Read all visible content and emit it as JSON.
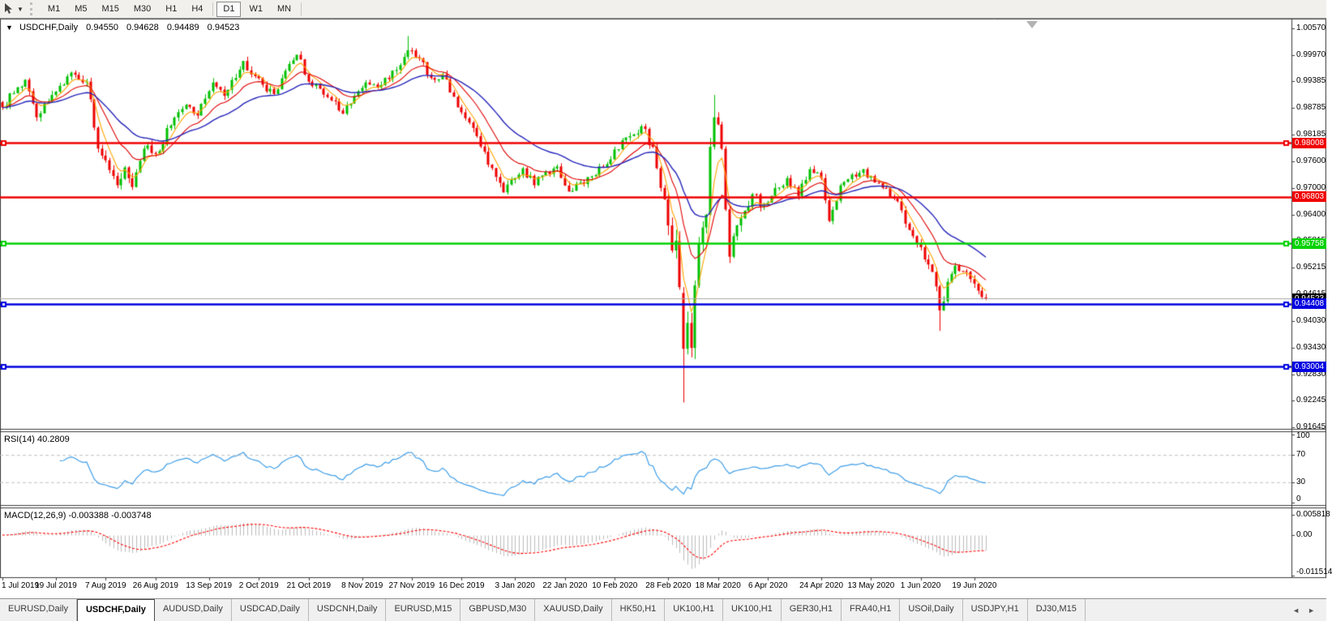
{
  "toolbar": {
    "dropdown_glyph": "▼",
    "timeframes": [
      "M1",
      "M5",
      "M15",
      "M30",
      "H1",
      "H4",
      "D1",
      "W1",
      "MN"
    ],
    "active_timeframe": "D1"
  },
  "chart_header": {
    "collapse_icon": "▼",
    "symbol": "USDCHF,Daily",
    "open": "0.94550",
    "high": "0.94628",
    "low": "0.94489",
    "close": "0.94523"
  },
  "chart_data": {
    "type": "candlestick",
    "symbol": "USDCHF",
    "timeframe": "Daily",
    "colors": {
      "bull": "#00c000",
      "bear": "#ee0000",
      "ma_fast": "#ffa500",
      "ma_mid": "#e00000",
      "ma_slow": "#2626bb",
      "rsi_line": "#3e9ee8",
      "macd_hist": "#bbbbbb",
      "macd_signal": "#ff0000",
      "current_price_line": "#a8a8a8",
      "current_price_badge": "#000000"
    },
    "price_axis": {
      "ticks": [
        "1.00570",
        "0.99970",
        "0.99385",
        "0.98785",
        "0.98185",
        "0.97600",
        "0.97000",
        "0.96400",
        "0.95815",
        "0.95215",
        "0.94615",
        "0.94030",
        "0.93430",
        "0.92830",
        "0.92245",
        "0.91645"
      ]
    },
    "current_price": 0.94523,
    "current_price_label": "0.94523",
    "levels": [
      {
        "price": 0.98008,
        "label": "0.98008",
        "color": "#f00000",
        "selected": true
      },
      {
        "price": 0.96803,
        "label": "0.96803",
        "color": "#f00000",
        "selected": false
      },
      {
        "price": 0.95758,
        "label": "0.95758",
        "color": "#00d200",
        "selected": true
      },
      {
        "price": 0.94408,
        "label": "0.94408",
        "color": "#0000e0",
        "selected": true
      },
      {
        "price": 0.93004,
        "label": "0.93004",
        "color": "#0000e0",
        "selected": true
      }
    ],
    "moving_averages": [
      {
        "period": 5,
        "color": "#ffa500",
        "width": 1.1
      },
      {
        "period": 13,
        "color": "#e00000",
        "width": 1.1
      },
      {
        "period": 30,
        "color": "#2626bb",
        "width": 1.4
      }
    ],
    "close_anchors": [
      [
        0,
        0.988,
        0.002
      ],
      [
        3,
        0.9912,
        0.002
      ],
      [
        6,
        0.9942,
        0.002
      ],
      [
        9,
        0.9858,
        0.0022
      ],
      [
        13,
        0.9908,
        0.002
      ],
      [
        18,
        0.9958,
        0.0018
      ],
      [
        22,
        0.9938,
        0.0018
      ],
      [
        25,
        0.9788,
        0.0026
      ],
      [
        27,
        0.9762,
        0.0026
      ],
      [
        30,
        0.9706,
        0.0026
      ],
      [
        32,
        0.9746,
        0.0024
      ],
      [
        34,
        0.9702,
        0.0024
      ],
      [
        37,
        0.9788,
        0.0022
      ],
      [
        40,
        0.9776,
        0.002
      ],
      [
        44,
        0.984,
        0.0018
      ],
      [
        48,
        0.9886,
        0.0018
      ],
      [
        51,
        0.9862,
        0.0018
      ],
      [
        55,
        0.9936,
        0.0018
      ],
      [
        58,
        0.9906,
        0.0018
      ],
      [
        63,
        0.9984,
        0.0018
      ],
      [
        66,
        0.995,
        0.0018
      ],
      [
        69,
        0.9916,
        0.0018
      ],
      [
        71,
        0.991,
        0.0018
      ],
      [
        74,
        0.9962,
        0.0018
      ],
      [
        77,
        0.9998,
        0.0018
      ],
      [
        80,
        0.9938,
        0.0018
      ],
      [
        83,
        0.9922,
        0.0016
      ],
      [
        86,
        0.9896,
        0.0016
      ],
      [
        89,
        0.9866,
        0.0018
      ],
      [
        92,
        0.9906,
        0.0016
      ],
      [
        95,
        0.9936,
        0.0016
      ],
      [
        99,
        0.993,
        0.0016
      ],
      [
        103,
        0.9964,
        0.0016
      ],
      [
        106,
        1.0008,
        0.0016
      ],
      [
        109,
        0.999,
        0.0016
      ],
      [
        112,
        0.9946,
        0.0016
      ],
      [
        115,
        0.9954,
        0.0016
      ],
      [
        118,
        0.9904,
        0.0018
      ],
      [
        121,
        0.9856,
        0.0018
      ],
      [
        124,
        0.9816,
        0.0018
      ],
      [
        127,
        0.9752,
        0.002
      ],
      [
        131,
        0.969,
        0.002
      ],
      [
        134,
        0.9722,
        0.0018
      ],
      [
        136,
        0.9744,
        0.0016
      ],
      [
        139,
        0.9706,
        0.0016
      ],
      [
        142,
        0.9736,
        0.0016
      ],
      [
        145,
        0.9748,
        0.0016
      ],
      [
        148,
        0.9692,
        0.0018
      ],
      [
        151,
        0.9712,
        0.0016
      ],
      [
        154,
        0.9726,
        0.0016
      ],
      [
        157,
        0.9746,
        0.0016
      ],
      [
        160,
        0.9786,
        0.0016
      ],
      [
        164,
        0.9816,
        0.0016
      ],
      [
        167,
        0.9838,
        0.0018
      ],
      [
        170,
        0.9792,
        0.0024
      ],
      [
        172,
        0.97,
        0.0034
      ],
      [
        174,
        0.9616,
        0.004
      ],
      [
        175,
        0.956,
        0.0046
      ],
      [
        176,
        0.9582,
        0.0046
      ],
      [
        177,
        0.9478,
        0.005
      ],
      [
        178,
        0.934,
        0.0055
      ],
      [
        179,
        0.9398,
        0.005
      ],
      [
        180,
        0.9342,
        0.005
      ],
      [
        181,
        0.9482,
        0.0048
      ],
      [
        182,
        0.9576,
        0.0044
      ],
      [
        184,
        0.964,
        0.004
      ],
      [
        185,
        0.9792,
        0.004
      ],
      [
        186,
        0.9858,
        0.0038
      ],
      [
        187,
        0.9842,
        0.0034
      ],
      [
        188,
        0.9788,
        0.0032
      ],
      [
        189,
        0.9652,
        0.0034
      ],
      [
        190,
        0.9546,
        0.0032
      ],
      [
        191,
        0.9592,
        0.0028
      ],
      [
        193,
        0.9632,
        0.0026
      ],
      [
        196,
        0.9686,
        0.0024
      ],
      [
        199,
        0.9662,
        0.0022
      ],
      [
        202,
        0.97,
        0.002
      ],
      [
        205,
        0.9722,
        0.002
      ],
      [
        208,
        0.9682,
        0.002
      ],
      [
        211,
        0.9742,
        0.0018
      ],
      [
        214,
        0.9722,
        0.0018
      ],
      [
        216,
        0.9626,
        0.0022
      ],
      [
        219,
        0.9706,
        0.0018
      ],
      [
        222,
        0.973,
        0.0016
      ],
      [
        225,
        0.9742,
        0.0016
      ],
      [
        228,
        0.9712,
        0.0016
      ],
      [
        231,
        0.97,
        0.0016
      ],
      [
        233,
        0.9676,
        0.0016
      ],
      [
        235,
        0.965,
        0.0016
      ],
      [
        237,
        0.9606,
        0.0018
      ],
      [
        239,
        0.9576,
        0.0018
      ],
      [
        241,
        0.954,
        0.002
      ],
      [
        243,
        0.9512,
        0.0022
      ],
      [
        245,
        0.9426,
        0.0026
      ],
      [
        246,
        0.9446,
        0.0024
      ],
      [
        247,
        0.949,
        0.0022
      ],
      [
        249,
        0.9526,
        0.002
      ],
      [
        251,
        0.9514,
        0.0018
      ],
      [
        253,
        0.9496,
        0.0018
      ],
      [
        255,
        0.947,
        0.0018
      ],
      [
        256,
        0.9456,
        0.0016
      ],
      [
        257,
        0.94523,
        0.0014
      ]
    ],
    "candle_overrides": [
      {
        "day": 106,
        "high": 1.004
      },
      {
        "day": 178,
        "open": 0.9465,
        "high": 0.9478,
        "low": 0.922,
        "close": 0.934
      },
      {
        "day": 186,
        "high": 0.9908
      },
      {
        "day": 245,
        "low": 0.938
      },
      {
        "day": 257,
        "open": 0.9455,
        "high": 0.94628,
        "low": 0.94489,
        "close": 0.94523
      }
    ],
    "x_labels": [
      {
        "day": 0,
        "label": "1 Jul 2019"
      },
      {
        "day": 14,
        "label": "19 Jul 2019"
      },
      {
        "day": 27,
        "label": "7 Aug 2019"
      },
      {
        "day": 40,
        "label": "26 Aug 2019"
      },
      {
        "day": 54,
        "label": "13 Sep 2019"
      },
      {
        "day": 67,
        "label": "2 Oct 2019"
      },
      {
        "day": 80,
        "label": "21 Oct 2019"
      },
      {
        "day": 94,
        "label": "8 Nov 2019"
      },
      {
        "day": 107,
        "label": "27 Nov 2019"
      },
      {
        "day": 120,
        "label": "16 Dec 2019"
      },
      {
        "day": 134,
        "label": "3 Jan 2020"
      },
      {
        "day": 147,
        "label": "22 Jan 2020"
      },
      {
        "day": 160,
        "label": "10 Feb 2020"
      },
      {
        "day": 174,
        "label": "28 Feb 2020"
      },
      {
        "day": 187,
        "label": "18 Mar 2020"
      },
      {
        "day": 200,
        "label": "6 Apr 2020"
      },
      {
        "day": 214,
        "label": "24 Apr 2020"
      },
      {
        "day": 227,
        "label": "13 May 2020"
      },
      {
        "day": 240,
        "label": "1 Jun 2020"
      },
      {
        "day": 254,
        "label": "19 Jun 2020"
      }
    ],
    "rsi": {
      "label": "RSI(14) 40.2809",
      "period": 14,
      "value": "40.2809",
      "levels": [
        70,
        30
      ],
      "ticks": [
        {
          "label": "100",
          "value": 100
        },
        {
          "label": "70",
          "value": 70
        },
        {
          "label": "30",
          "value": 30
        },
        {
          "label": "0",
          "value": 0
        }
      ]
    },
    "macd": {
      "label": "MACD(12,26,9) -0.003388 -0.003748",
      "fast": 12,
      "slow": 26,
      "signal_period": 9,
      "value": "-0.003388",
      "signal_value": "-0.003748",
      "ticks": [
        {
          "label": "0.005818",
          "value": 0.005818
        },
        {
          "label": "0.00",
          "value": 0
        },
        {
          "label": "-0.011514",
          "value": -0.011514
        }
      ]
    }
  },
  "bottom_tabs": {
    "scroll_left_glyph": "◄",
    "scroll_right_glyph": "►",
    "active_index": 1,
    "items": [
      "EURUSD,Daily",
      "USDCHF,Daily",
      "AUDUSD,Daily",
      "USDCAD,Daily",
      "USDCNH,Daily",
      "EURUSD,M15",
      "GBPUSD,M30",
      "XAUUSD,Daily",
      "HK50,H1",
      "UK100,H1",
      "UK100,H1",
      "GER30,H1",
      "FRA40,H1",
      "USOil,Daily",
      "USDJPY,H1",
      "DJ30,M15"
    ]
  }
}
